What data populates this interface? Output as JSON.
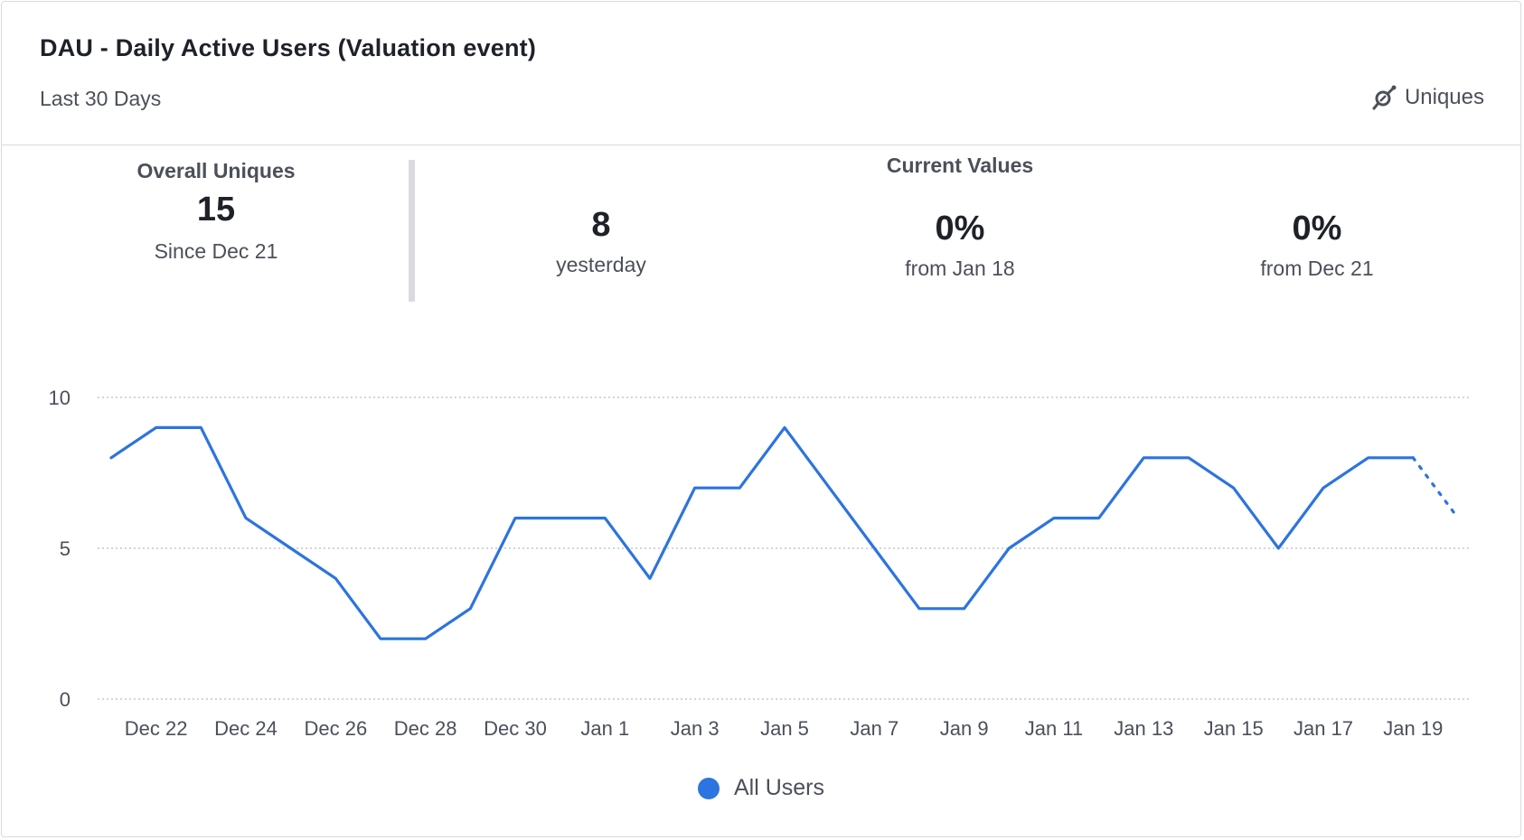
{
  "header": {
    "title": "DAU - Daily Active Users (Valuation event)",
    "subtitle": "Last 30 Days",
    "metric_toggle": {
      "icon": "metric-switch-icon",
      "label": "Uniques"
    }
  },
  "stats": {
    "overall": {
      "label": "Overall Uniques",
      "value": "15",
      "sub": "Since Dec 21"
    },
    "current_values_label": "Current Values",
    "items": [
      {
        "value": "8",
        "sub": "yesterday"
      },
      {
        "value": "0%",
        "sub": "from Jan 18"
      },
      {
        "value": "0%",
        "sub": "from Dec 21"
      }
    ]
  },
  "colors": {
    "series": "#2c74df",
    "grid": "#b8bcc4",
    "text": "#4b5059"
  },
  "chart_data": {
    "type": "line",
    "title": "",
    "xlabel": "",
    "ylabel": "",
    "ylim": [
      0,
      10
    ],
    "yticks": [
      0,
      5,
      10
    ],
    "grid": true,
    "legend": "bottom-center",
    "x_tick_labels": [
      "Dec 22",
      "Dec 24",
      "Dec 26",
      "Dec 28",
      "Dec 30",
      "Jan 1",
      "Jan 3",
      "Jan 5",
      "Jan 7",
      "Jan 9",
      "Jan 11",
      "Jan 13",
      "Jan 15",
      "Jan 17",
      "Jan 19"
    ],
    "x": [
      "Dec 21",
      "Dec 22",
      "Dec 23",
      "Dec 24",
      "Dec 25",
      "Dec 26",
      "Dec 27",
      "Dec 28",
      "Dec 29",
      "Dec 30",
      "Dec 31",
      "Jan 1",
      "Jan 2",
      "Jan 3",
      "Jan 4",
      "Jan 5",
      "Jan 6",
      "Jan 7",
      "Jan 8",
      "Jan 9",
      "Jan 10",
      "Jan 11",
      "Jan 12",
      "Jan 13",
      "Jan 14",
      "Jan 15",
      "Jan 16",
      "Jan 17",
      "Jan 18",
      "Jan 19",
      "Jan 20"
    ],
    "series": [
      {
        "name": "All Users",
        "values": [
          8,
          9,
          9,
          6,
          5,
          4,
          2,
          2,
          3,
          6,
          6,
          6,
          4,
          7,
          7,
          9,
          7,
          5,
          3,
          3,
          5,
          6,
          6,
          8,
          8,
          7,
          5,
          7,
          8,
          8,
          6
        ],
        "incomplete_from_index": 29
      }
    ]
  }
}
